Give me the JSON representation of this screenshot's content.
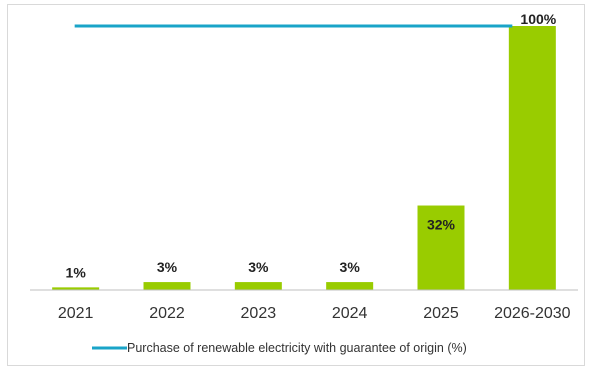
{
  "chart_data": {
    "type": "bar",
    "categories": [
      "2021",
      "2022",
      "2023",
      "2024",
      "2025",
      "2026-2030"
    ],
    "values": [
      1,
      3,
      3,
      3,
      32,
      100
    ],
    "value_labels": [
      "1%",
      "3%",
      "3%",
      "3%",
      "32%",
      "100%"
    ],
    "ylim": [
      0,
      100
    ],
    "line_series": {
      "name": "Purchase of renewable electricity with guarantee of origin (%)",
      "values": [
        100,
        100,
        100,
        100,
        100,
        100
      ]
    },
    "title": "",
    "xlabel": "",
    "ylabel": "",
    "grid": false,
    "legend_position": "bottom",
    "colors": {
      "bar": "#99cc00",
      "line": "#1aa4c8",
      "axis": "#bfbfbf"
    }
  }
}
